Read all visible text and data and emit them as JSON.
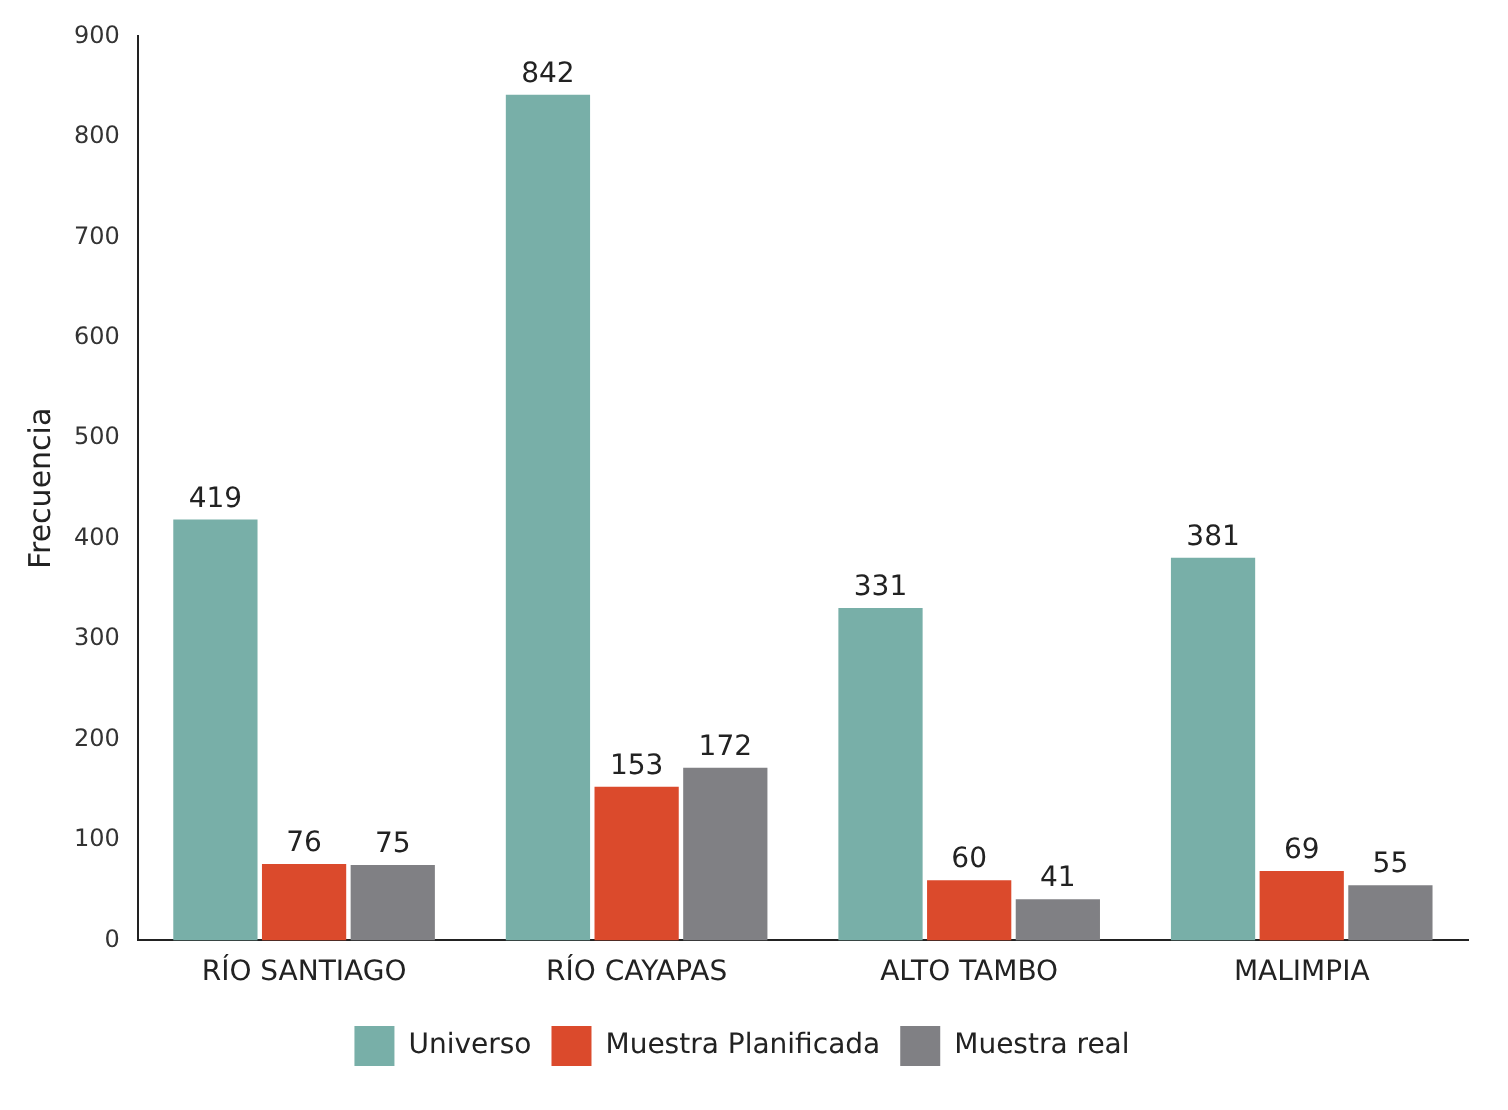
{
  "chart_data": {
    "type": "bar",
    "ylabel": "Frecuencia",
    "categories": [
      "RÍO SANTIAGO",
      "RÍO CAYAPAS",
      "ALTO TAMBO",
      "MALIMPIA"
    ],
    "series": [
      {
        "name": "Universo",
        "color": "#78afa8",
        "values": [
          419,
          842,
          331,
          381
        ]
      },
      {
        "name": "Muestra Planificada",
        "color": "#db4a2c",
        "values": [
          76,
          153,
          60,
          69
        ]
      },
      {
        "name": "Muestra real",
        "color": "#808084",
        "values": [
          75,
          172,
          41,
          55
        ]
      }
    ],
    "ylim": [
      0,
      900
    ],
    "yticks": [
      0,
      100,
      200,
      300,
      400,
      500,
      600,
      700,
      800,
      900
    ],
    "grid": false,
    "legend": "bottom",
    "data_labels": true
  }
}
